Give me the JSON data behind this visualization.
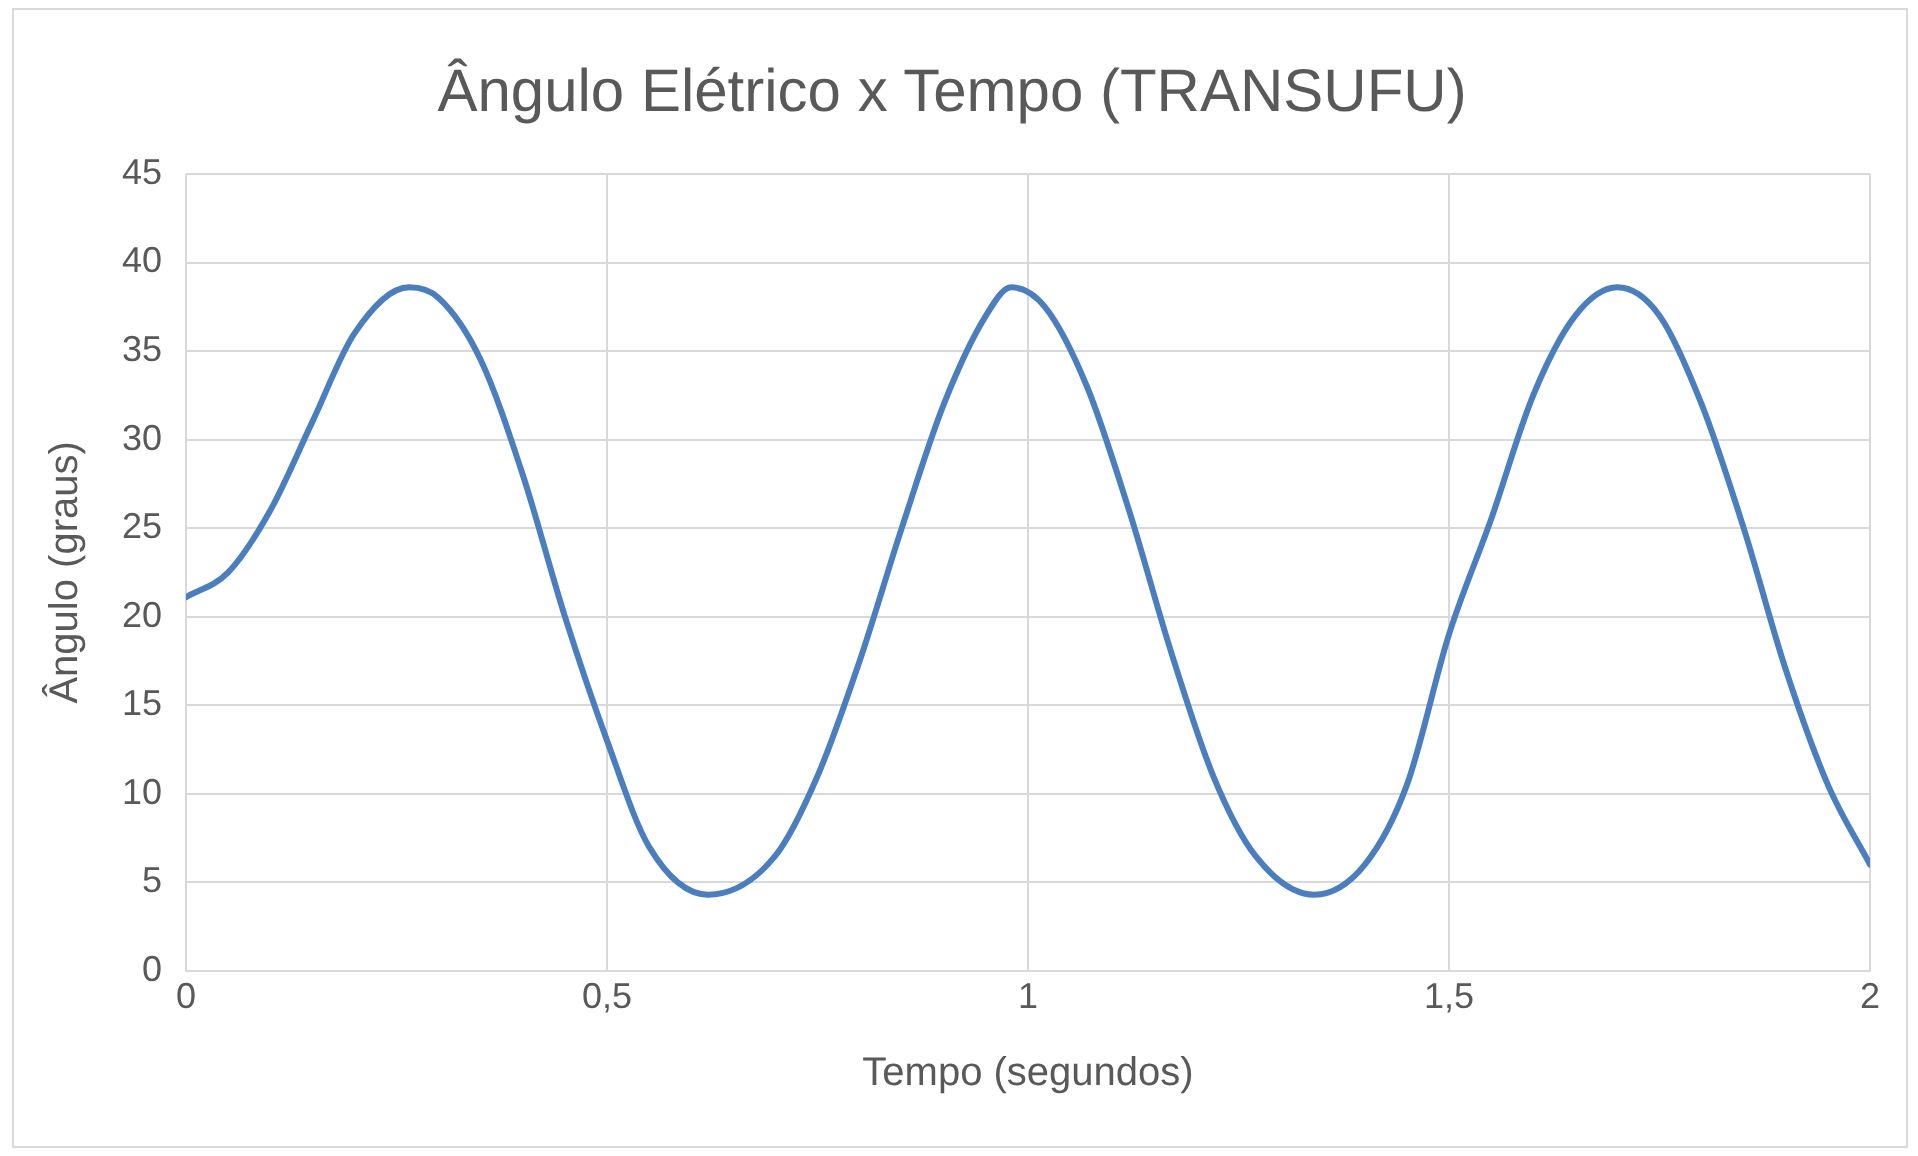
{
  "chart_data": {
    "type": "line",
    "title": "Ângulo Elétrico x Tempo (TRANSUFU)",
    "xlabel": "Tempo (segundos)",
    "ylabel": "Ângulo (graus)",
    "x": [
      0,
      0.05,
      0.1,
      0.15,
      0.2,
      0.265,
      0.3,
      0.35,
      0.4,
      0.45,
      0.5,
      0.55,
      0.62,
      0.7,
      0.75,
      0.8,
      0.85,
      0.9,
      0.95,
      0.98,
      1.02,
      1.07,
      1.12,
      1.17,
      1.22,
      1.27,
      1.34,
      1.4,
      1.45,
      1.5,
      1.55,
      1.6,
      1.65,
      1.7,
      1.75,
      1.8,
      1.85,
      1.9,
      1.95,
      2
    ],
    "series": [
      {
        "color": "#4a7ebf",
        "values": [
          21.1,
          22.5,
          26,
          31,
          36,
          38.6,
          38,
          34.5,
          28,
          20,
          13,
          7,
          4.3,
          6.5,
          11,
          17.5,
          25,
          32,
          37,
          38.6,
          37.5,
          33,
          26,
          18,
          11,
          6.5,
          4.3,
          6,
          10.5,
          19,
          25.5,
          32.5,
          37,
          38.6,
          37,
          32,
          25,
          17,
          10.5,
          6
        ]
      }
    ],
    "xlim": [
      0,
      2
    ],
    "xticks": [
      0,
      {
        "value": 0.5,
        "label": "0,5"
      },
      1,
      {
        "value": 1.5,
        "label": "1,5"
      },
      2
    ],
    "ylim": [
      0,
      45
    ],
    "yticks": [
      0,
      5,
      10,
      15,
      20,
      25,
      30,
      35,
      40,
      45
    ],
    "grid": true,
    "legend": false,
    "marker": "none",
    "line_style": "solid"
  }
}
